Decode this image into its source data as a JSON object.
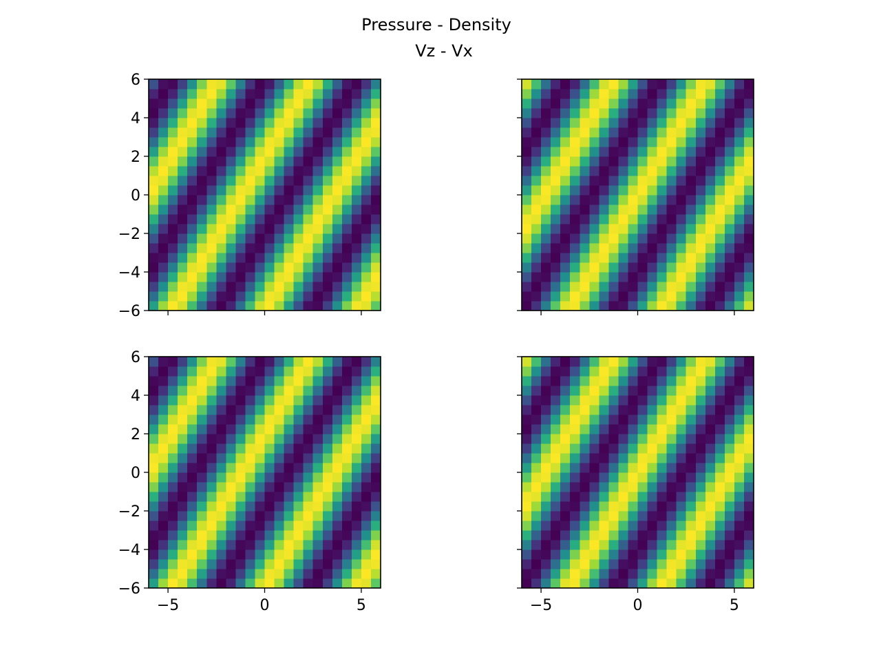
{
  "figure": {
    "title_line1": "Pressure - Density",
    "title_line2": "Vz - Vx"
  },
  "colormap": "viridis",
  "chart_data": [
    {
      "type": "heatmap",
      "name": "top-left",
      "xlim": [
        -6,
        6
      ],
      "ylim": [
        -6,
        6
      ],
      "grid_n": 24,
      "xticks": [
        -5,
        0,
        5
      ],
      "yticks": [
        -6,
        -4,
        -2,
        0,
        2,
        4,
        6
      ],
      "show_xticklabels": false,
      "show_yticklabels": true,
      "field": {
        "formula": "sin(kx*x + ky*y)",
        "kx": -1.31,
        "ky": 0.785,
        "phase": 0.0,
        "values_range": [
          -1,
          1
        ]
      },
      "grid": false
    },
    {
      "type": "heatmap",
      "name": "top-right",
      "xlim": [
        -6,
        6
      ],
      "ylim": [
        -6,
        6
      ],
      "grid_n": 24,
      "xticks": [
        -5,
        0,
        5
      ],
      "yticks": [
        -6,
        -4,
        -2,
        0,
        2,
        4,
        6
      ],
      "show_xticklabels": false,
      "show_yticklabels": false,
      "field": {
        "formula": "sin(kx*x + ky*y)",
        "kx": -1.31,
        "ky": 0.785,
        "phase": 1.571,
        "values_range": [
          -1,
          1
        ]
      },
      "grid": false
    },
    {
      "type": "heatmap",
      "name": "bottom-left",
      "xlim": [
        -6,
        6
      ],
      "ylim": [
        -6,
        6
      ],
      "grid_n": 24,
      "xticks": [
        -5,
        0,
        5
      ],
      "yticks": [
        -6,
        -4,
        -2,
        0,
        2,
        4,
        6
      ],
      "show_xticklabels": true,
      "show_yticklabels": true,
      "field": {
        "formula": "sin(kx*x + ky*y)",
        "kx": -1.31,
        "ky": 0.785,
        "phase": 0.0,
        "values_range": [
          -1,
          1
        ]
      },
      "grid": false
    },
    {
      "type": "heatmap",
      "name": "bottom-right",
      "xlim": [
        -6,
        6
      ],
      "ylim": [
        -6,
        6
      ],
      "grid_n": 24,
      "xticks": [
        -5,
        0,
        5
      ],
      "yticks": [
        -6,
        -4,
        -2,
        0,
        2,
        4,
        6
      ],
      "show_xticklabels": true,
      "show_yticklabels": false,
      "field": {
        "formula": "sin(kx*x + ky*y)",
        "kx": -1.31,
        "ky": 0.785,
        "phase": 1.571,
        "values_range": [
          -1,
          1
        ]
      },
      "grid": false
    }
  ]
}
